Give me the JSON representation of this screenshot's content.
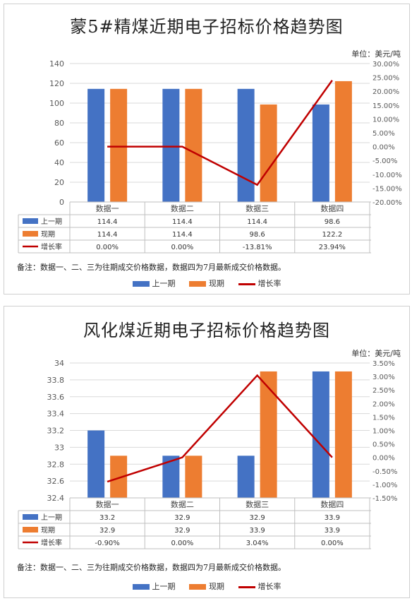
{
  "colors": {
    "prev": "#4472C4",
    "curr": "#ED7D31",
    "growth": "#C00000",
    "grid": "#d9d9d9",
    "text": "#595959"
  },
  "chart_data": [
    {
      "type": "bar",
      "title": "蒙5#精煤近期电子招标价格趋势图",
      "unit_label": "单位：美元/吨",
      "categories": [
        "数据一",
        "数据二",
        "数据三",
        "数据四"
      ],
      "ylim": [
        0,
        140
      ],
      "yticks": [
        "0",
        "20",
        "40",
        "60",
        "80",
        "100",
        "120",
        "140"
      ],
      "y2lim": [
        -20,
        30
      ],
      "y2ticks": [
        "-20.00%",
        "-15.00%",
        "-10.00%",
        "-5.00%",
        "0.00%",
        "5.00%",
        "10.00%",
        "15.00%",
        "20.00%",
        "25.00%",
        "30.00%"
      ],
      "series": [
        {
          "name": "上一期",
          "key": "prev",
          "kind": "bar",
          "values": [
            114.4,
            114.4,
            114.4,
            98.6
          ],
          "labels": [
            "114.4",
            "114.4",
            "114.4",
            "98.6"
          ]
        },
        {
          "name": "现期",
          "key": "curr",
          "kind": "bar",
          "values": [
            114.4,
            114.4,
            98.6,
            122.2
          ],
          "labels": [
            "114.4",
            "114.4",
            "98.6",
            "122.2"
          ]
        },
        {
          "name": "增长率",
          "key": "growth",
          "kind": "line",
          "axis": "right",
          "values": [
            0,
            0,
            -13.81,
            23.94
          ],
          "labels": [
            "0.00%",
            "0.00%",
            "-13.81%",
            "23.94%"
          ]
        }
      ],
      "note": "备注：数据一、二、三为往期成交价格数据，数据四为7月最新成交价格数据。",
      "legend": [
        "上一期",
        "现期",
        "增长率"
      ]
    },
    {
      "type": "bar",
      "title": "风化煤近期电子招标价格趋势图",
      "unit_label": "单位：美元/吨",
      "categories": [
        "数据一",
        "数据二",
        "数据三",
        "数据四"
      ],
      "ylim": [
        32.4,
        34
      ],
      "yticks": [
        "32.4",
        "32.6",
        "32.8",
        "33",
        "33.2",
        "33.4",
        "33.6",
        "33.8",
        "34"
      ],
      "y2lim": [
        -1.5,
        3.5
      ],
      "y2ticks": [
        "-1.50%",
        "-1.00%",
        "-0.50%",
        "0.00%",
        "0.50%",
        "1.00%",
        "1.50%",
        "2.00%",
        "2.50%",
        "3.00%",
        "3.50%"
      ],
      "series": [
        {
          "name": "上一期",
          "key": "prev",
          "kind": "bar",
          "values": [
            33.2,
            32.9,
            32.9,
            33.9
          ],
          "labels": [
            "33.2",
            "32.9",
            "32.9",
            "33.9"
          ]
        },
        {
          "name": "现期",
          "key": "curr",
          "kind": "bar",
          "values": [
            32.9,
            32.9,
            33.9,
            33.9
          ],
          "labels": [
            "32.9",
            "32.9",
            "33.9",
            "33.9"
          ]
        },
        {
          "name": "增长率",
          "key": "growth",
          "kind": "line",
          "axis": "right",
          "values": [
            -0.9,
            0,
            3.04,
            0
          ],
          "labels": [
            "-0.90%",
            "0.00%",
            "3.04%",
            "0.00%"
          ]
        }
      ],
      "note": "备注：数据一、二、三为往期成交价格数据，数据四为7月最新成交价格数据。",
      "legend": [
        "上一期",
        "现期",
        "增长率"
      ]
    }
  ]
}
